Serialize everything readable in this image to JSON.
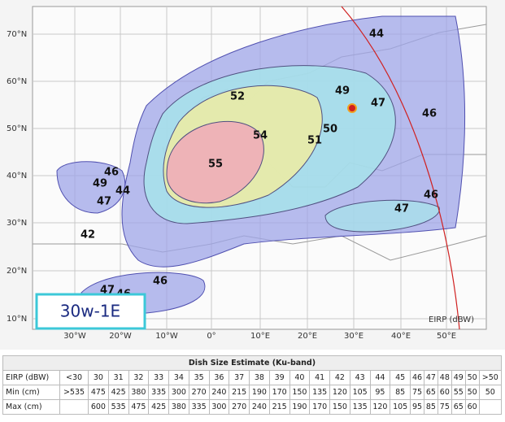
{
  "map": {
    "lat_labels": [
      "70°N",
      "60°N",
      "50°N",
      "40°N",
      "30°N",
      "20°N",
      "10°N"
    ],
    "lon_labels": [
      "30°W",
      "20°W",
      "10°W",
      "0°",
      "10°E",
      "20°E",
      "30°E",
      "40°E",
      "50°E"
    ],
    "contour_labels": [
      44,
      52,
      49,
      47,
      46,
      54,
      50,
      51,
      55,
      46,
      49,
      44,
      47,
      46,
      47,
      42,
      46,
      47,
      46
    ],
    "beam_name": "30w-1E",
    "legend_label": "EIRP (dBW)"
  },
  "table": {
    "title": "Dish Size Estimate (Ku-band)",
    "rows": [
      [
        "EIRP (dBW)",
        "<30",
        "30",
        "31",
        "32",
        "33",
        "34",
        "35",
        "36",
        "37",
        "38",
        "39",
        "40",
        "41",
        "42",
        "43",
        "44",
        "45",
        "46",
        "47",
        "48",
        "49",
        "50",
        ">50"
      ],
      [
        "Min (cm)",
        ">535",
        "475",
        "425",
        "380",
        "335",
        "300",
        "270",
        "240",
        "215",
        "190",
        "170",
        "150",
        "135",
        "120",
        "105",
        "95",
        "85",
        "75",
        "65",
        "60",
        "55",
        "50",
        "50"
      ],
      [
        "Max (cm)",
        null,
        "600",
        "535",
        "475",
        "425",
        "380",
        "335",
        "300",
        "270",
        "240",
        "215",
        "190",
        "170",
        "150",
        "135",
        "120",
        "105",
        "95",
        "85",
        "75",
        "65",
        "60",
        null
      ]
    ]
  }
}
